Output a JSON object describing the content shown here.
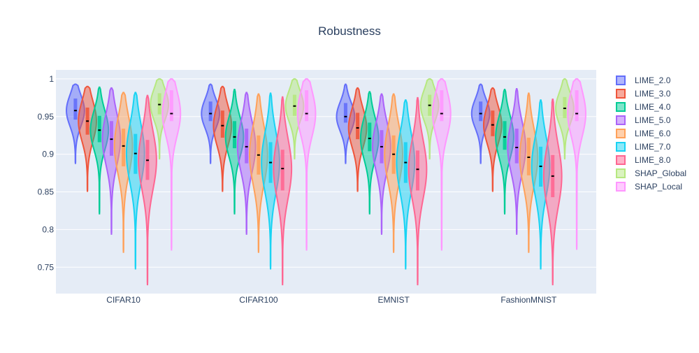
{
  "chart_data": {
    "type": "violin",
    "title": "Robustness",
    "xlabel": "",
    "ylabel": "",
    "categories": [
      "CIFAR10",
      "CIFAR100",
      "EMNIST",
      "FashionMNIST"
    ],
    "ylim": [
      0.715,
      1.012
    ],
    "yticks": [
      {
        "value": 0.75,
        "label": "0.75"
      },
      {
        "value": 0.8,
        "label": "0.8"
      },
      {
        "value": 0.85,
        "label": "0.85"
      },
      {
        "value": 0.9,
        "label": "0.9"
      },
      {
        "value": 0.95,
        "label": "0.95"
      },
      {
        "value": 1.0,
        "label": "1"
      }
    ],
    "grid": true,
    "legend_position": "right",
    "series": [
      {
        "name": "LIME_2.0",
        "color": "#636efa",
        "min": [
          0.888,
          0.888,
          0.888,
          0.888
        ],
        "max": [
          0.993,
          0.993,
          0.993,
          0.993
        ],
        "q1": [
          0.946,
          0.944,
          0.942,
          0.944
        ],
        "q3": [
          0.974,
          0.97,
          0.968,
          0.97
        ],
        "median": [
          0.958,
          0.954,
          0.95,
          0.954
        ]
      },
      {
        "name": "LIME_3.0",
        "color": "#ef553b",
        "min": [
          0.851,
          0.851,
          0.851,
          0.851
        ],
        "max": [
          0.99,
          0.99,
          0.988,
          0.988
        ],
        "q1": [
          0.926,
          0.922,
          0.92,
          0.924
        ],
        "q3": [
          0.962,
          0.958,
          0.955,
          0.958
        ],
        "median": [
          0.944,
          0.938,
          0.935,
          0.939
        ]
      },
      {
        "name": "LIME_4.0",
        "color": "#00cc96",
        "min": [
          0.821,
          0.821,
          0.821,
          0.821
        ],
        "max": [
          0.989,
          0.986,
          0.983,
          0.986
        ],
        "q1": [
          0.916,
          0.908,
          0.904,
          0.906
        ],
        "q3": [
          0.951,
          0.944,
          0.942,
          0.944
        ],
        "median": [
          0.932,
          0.923,
          0.921,
          0.923
        ]
      },
      {
        "name": "LIME_5.0",
        "color": "#ab63fa",
        "min": [
          0.794,
          0.794,
          0.794,
          0.794
        ],
        "max": [
          0.988,
          0.982,
          0.98,
          0.987
        ],
        "q1": [
          0.898,
          0.888,
          0.888,
          0.888
        ],
        "q3": [
          0.944,
          0.934,
          0.932,
          0.934
        ],
        "median": [
          0.92,
          0.91,
          0.91,
          0.909
        ]
      },
      {
        "name": "LIME_6.0",
        "color": "#ffa15a",
        "min": [
          0.77,
          0.77,
          0.77,
          0.77
        ],
        "max": [
          0.982,
          0.98,
          0.98,
          0.981
        ],
        "q1": [
          0.884,
          0.873,
          0.874,
          0.872
        ],
        "q3": [
          0.934,
          0.925,
          0.925,
          0.922
        ],
        "median": [
          0.911,
          0.899,
          0.9,
          0.896
        ]
      },
      {
        "name": "LIME_7.0",
        "color": "#19d3f3",
        "min": [
          0.748,
          0.748,
          0.748,
          0.748
        ],
        "max": [
          0.982,
          0.981,
          0.972,
          0.972
        ],
        "q1": [
          0.874,
          0.862,
          0.862,
          0.857
        ],
        "q3": [
          0.927,
          0.916,
          0.916,
          0.91
        ],
        "median": [
          0.901,
          0.889,
          0.889,
          0.884
        ]
      },
      {
        "name": "LIME_8.0",
        "color": "#ff6692",
        "min": [
          0.727,
          0.727,
          0.727,
          0.727
        ],
        "max": [
          0.978,
          0.976,
          0.975,
          0.973
        ],
        "q1": [
          0.866,
          0.852,
          0.852,
          0.843
        ],
        "q3": [
          0.919,
          0.906,
          0.905,
          0.899
        ],
        "median": [
          0.892,
          0.881,
          0.88,
          0.871
        ]
      },
      {
        "name": "SHAP_Global",
        "color": "#b6e880",
        "min": [
          0.894,
          0.894,
          0.894,
          0.894
        ],
        "max": [
          1.0,
          1.0,
          1.0,
          1.0
        ],
        "q1": [
          0.953,
          0.951,
          0.951,
          0.948
        ],
        "q3": [
          0.981,
          0.979,
          0.979,
          0.976
        ],
        "median": [
          0.966,
          0.964,
          0.965,
          0.961
        ]
      },
      {
        "name": "SHAP_Local",
        "color": "#ff97ff",
        "min": [
          0.773,
          0.773,
          0.773,
          0.774
        ],
        "max": [
          1.0,
          1.0,
          1.0,
          1.0
        ],
        "q1": [
          0.944,
          0.944,
          0.944,
          0.944
        ],
        "q3": [
          0.985,
          0.985,
          0.985,
          0.985
        ],
        "median": [
          0.954,
          0.954,
          0.954,
          0.954
        ]
      }
    ]
  }
}
